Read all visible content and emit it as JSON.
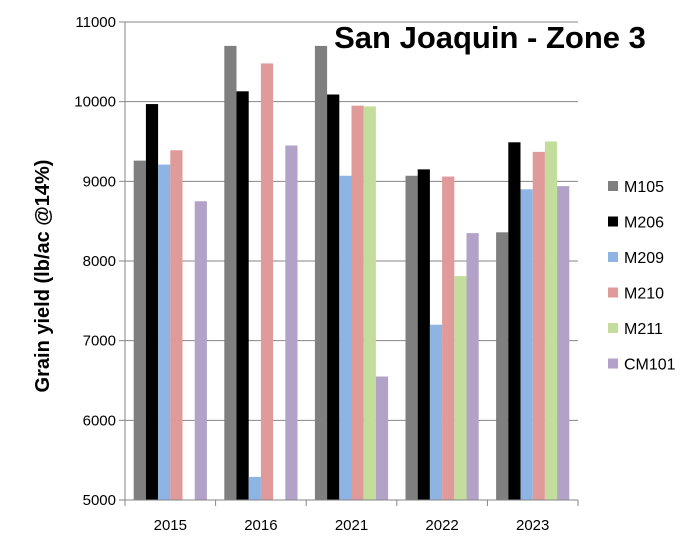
{
  "chart_data": {
    "type": "bar",
    "title": "San Joaquin - Zone 3",
    "xlabel": "",
    "ylabel": "Grain yield (lb/ac @14%)",
    "categories": [
      "2015",
      "2016",
      "2021",
      "2022",
      "2023"
    ],
    "ylim": [
      5000,
      11000
    ],
    "yticks": [
      5000,
      6000,
      7000,
      8000,
      9000,
      10000,
      11000
    ],
    "grid": true,
    "legend": "right",
    "series": [
      {
        "name": "M105",
        "color": "#7f7f7f",
        "values": [
          9260,
          10700,
          10700,
          9070,
          8360
        ]
      },
      {
        "name": "M206",
        "color": "#000000",
        "values": [
          9970,
          10130,
          10090,
          9150,
          9490
        ]
      },
      {
        "name": "M209",
        "color": "#8db4e3",
        "values": [
          9210,
          5290,
          9070,
          7200,
          8900
        ]
      },
      {
        "name": "M210",
        "color": "#e09a99",
        "values": [
          9390,
          10480,
          9950,
          9060,
          9370
        ]
      },
      {
        "name": "M211",
        "color": "#c3dd9d",
        "values": [
          null,
          null,
          9940,
          7810,
          9500
        ]
      },
      {
        "name": "CM101",
        "color": "#b3a2c7",
        "values": [
          8750,
          9450,
          6550,
          8350,
          8940
        ]
      }
    ]
  }
}
